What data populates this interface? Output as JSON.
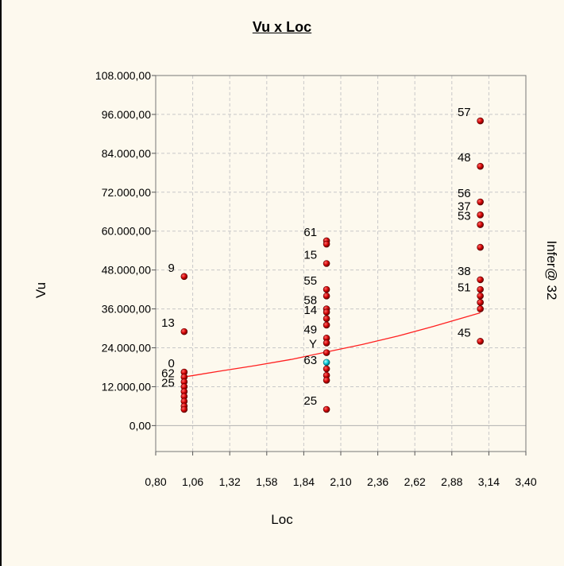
{
  "chart_data": {
    "type": "scatter",
    "title": "Vu x Loc",
    "xlabel": "Loc",
    "ylabel": "Vu",
    "side_label": "Infer@ 32",
    "xlim": [
      0.8,
      3.4
    ],
    "ylim": [
      -8000,
      108000
    ],
    "x_ticks": [
      "0,80",
      "1,06",
      "1,32",
      "1,58",
      "1,84",
      "2,10",
      "2,36",
      "2,62",
      "2,88",
      "3,14",
      "3,40"
    ],
    "y_ticks": [
      "108.000,00",
      "96.000,00",
      "84.000,00",
      "72.000,00",
      "60.000,00",
      "48.000,00",
      "36.000,00",
      "24.000,00",
      "12.000,00",
      "0,00"
    ],
    "grid": true,
    "marker_color": "#cc0000",
    "highlight_color": "#00c8d8",
    "trend_color": "#ff2020",
    "points": [
      {
        "x": 1.0,
        "y": 46000,
        "label": "9"
      },
      {
        "x": 1.0,
        "y": 29000,
        "label": "13"
      },
      {
        "x": 1.0,
        "y": 16500,
        "label": "0"
      },
      {
        "x": 1.0,
        "y": 15000,
        "label": ""
      },
      {
        "x": 1.0,
        "y": 13500,
        "label": "62"
      },
      {
        "x": 1.0,
        "y": 12000,
        "label": ""
      },
      {
        "x": 1.0,
        "y": 10500,
        "label": "25"
      },
      {
        "x": 1.0,
        "y": 9000,
        "label": ""
      },
      {
        "x": 1.0,
        "y": 7500,
        "label": ""
      },
      {
        "x": 1.0,
        "y": 6000,
        "label": ""
      },
      {
        "x": 1.0,
        "y": 5000,
        "label": ""
      },
      {
        "x": 2.0,
        "y": 57000,
        "label": "61"
      },
      {
        "x": 2.0,
        "y": 56000,
        "label": ""
      },
      {
        "x": 2.0,
        "y": 50000,
        "label": "15"
      },
      {
        "x": 2.0,
        "y": 42000,
        "label": "55"
      },
      {
        "x": 2.0,
        "y": 40000,
        "label": ""
      },
      {
        "x": 2.0,
        "y": 36000,
        "label": "58"
      },
      {
        "x": 2.0,
        "y": 35000,
        "label": ""
      },
      {
        "x": 2.0,
        "y": 33000,
        "label": "14"
      },
      {
        "x": 2.0,
        "y": 31000,
        "label": ""
      },
      {
        "x": 2.0,
        "y": 27000,
        "label": "49"
      },
      {
        "x": 2.0,
        "y": 25500,
        "label": ""
      },
      {
        "x": 2.0,
        "y": 22500,
        "label": "Y"
      },
      {
        "x": 2.0,
        "y": 19500,
        "label": "",
        "highlight": true
      },
      {
        "x": 2.0,
        "y": 17500,
        "label": "63"
      },
      {
        "x": 2.0,
        "y": 15500,
        "label": ""
      },
      {
        "x": 2.0,
        "y": 14000,
        "label": ""
      },
      {
        "x": 2.0,
        "y": 5000,
        "label": "25"
      },
      {
        "x": 3.08,
        "y": 94000,
        "label": "57"
      },
      {
        "x": 3.08,
        "y": 80000,
        "label": "48"
      },
      {
        "x": 3.08,
        "y": 69000,
        "label": "56"
      },
      {
        "x": 3.08,
        "y": 65000,
        "label": "37"
      },
      {
        "x": 3.08,
        "y": 62000,
        "label": "53"
      },
      {
        "x": 3.08,
        "y": 55000,
        "label": ""
      },
      {
        "x": 3.08,
        "y": 45000,
        "label": "38"
      },
      {
        "x": 3.08,
        "y": 42000,
        "label": ""
      },
      {
        "x": 3.08,
        "y": 40000,
        "label": "51"
      },
      {
        "x": 3.08,
        "y": 38000,
        "label": ""
      },
      {
        "x": 3.08,
        "y": 36000,
        "label": ""
      },
      {
        "x": 3.08,
        "y": 26000,
        "label": "45"
      }
    ],
    "trend": [
      {
        "x": 1.0,
        "y": 15000
      },
      {
        "x": 1.25,
        "y": 16800
      },
      {
        "x": 1.5,
        "y": 18500
      },
      {
        "x": 1.75,
        "y": 20400
      },
      {
        "x": 2.0,
        "y": 22700
      },
      {
        "x": 2.25,
        "y": 25000
      },
      {
        "x": 2.5,
        "y": 27600
      },
      {
        "x": 2.75,
        "y": 30600
      },
      {
        "x": 3.08,
        "y": 34800
      }
    ]
  }
}
